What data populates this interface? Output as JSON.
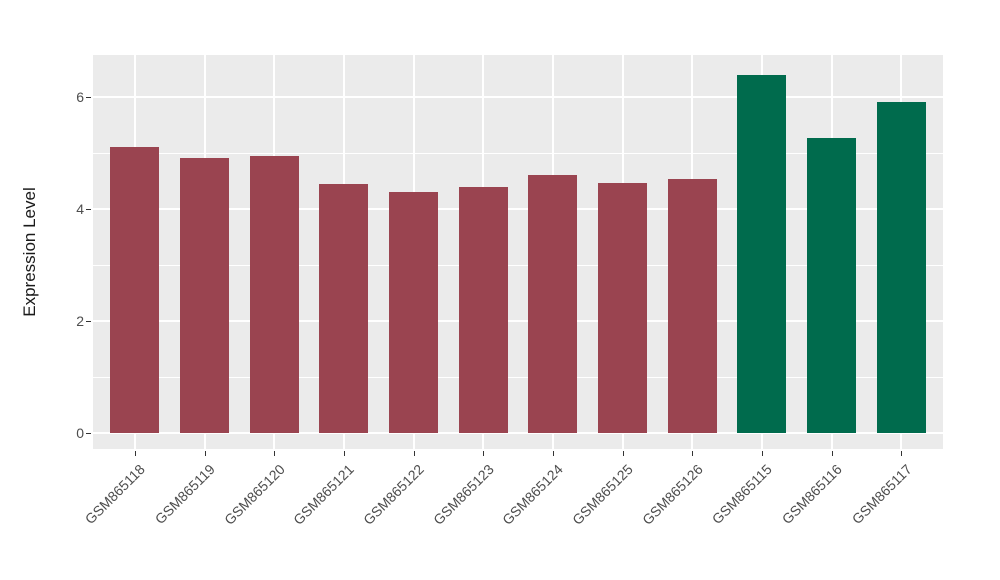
{
  "figure": {
    "background": "#FFFFFF",
    "panel_background": "#EBEBEB",
    "grid_color": "#FFFFFF",
    "axis_text_color": "#4D4D4D",
    "axis_title_color": "#1A1A1A",
    "tick_color": "#333333",
    "bar_color_group1": "#9A4450",
    "bar_color_group2": "#006B4D"
  },
  "chart_data": {
    "type": "bar",
    "title": "",
    "xlabel": "",
    "ylabel": "Expression Level",
    "categories": [
      "GSM865118",
      "GSM865119",
      "GSM865120",
      "GSM865121",
      "GSM865122",
      "GSM865123",
      "GSM865124",
      "GSM865125",
      "GSM865126",
      "GSM865115",
      "GSM865116",
      "GSM865117"
    ],
    "values": [
      5.1,
      4.91,
      4.95,
      4.45,
      4.3,
      4.4,
      4.61,
      4.47,
      4.54,
      6.4,
      5.27,
      5.92
    ],
    "bar_colors": [
      "#9A4450",
      "#9A4450",
      "#9A4450",
      "#9A4450",
      "#9A4450",
      "#9A4450",
      "#9A4450",
      "#9A4450",
      "#9A4450",
      "#006B4D",
      "#006B4D",
      "#006B4D"
    ],
    "yticks": [
      0,
      2,
      4,
      6
    ],
    "ytick_labels": [
      "0",
      "2",
      "4",
      "6"
    ],
    "minor_yticks": [
      1,
      3,
      5
    ],
    "ylim": [
      -0.29,
      6.75
    ],
    "grid": true,
    "legend": "none"
  }
}
